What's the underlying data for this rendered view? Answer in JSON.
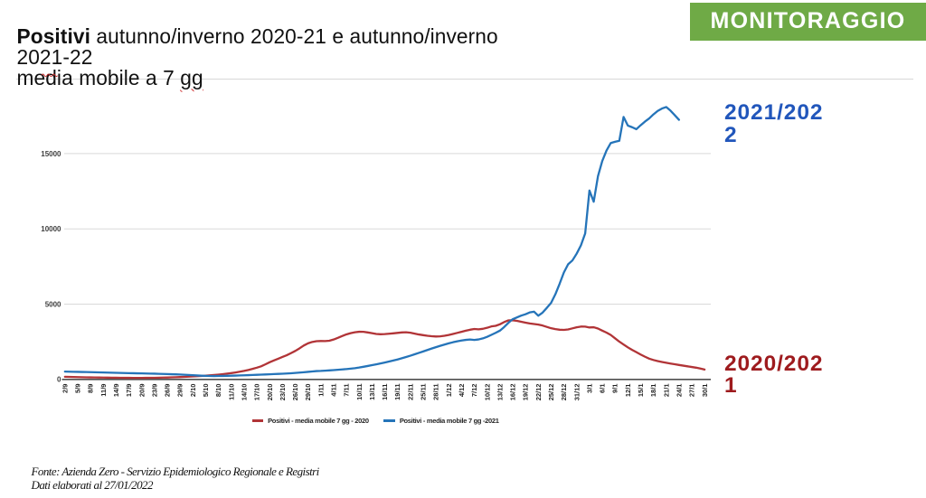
{
  "banner": {
    "label": "MONITORAGGIO",
    "bg_color": "#6faa46",
    "text_color": "#ffffff"
  },
  "title": {
    "emphasis": "Positivi",
    "rest": " autunno/inverno 2020-21 e autunno/inverno 2021-22",
    "subtitle_prefix": "media mobile a 7 ",
    "subtitle_flagged_word": "gg"
  },
  "series_labels": {
    "current_season": {
      "text": "2021/2022",
      "color": "#2156bb"
    },
    "previous_season": {
      "text": "2020/2021",
      "color": "#9e1b1e"
    }
  },
  "footer": {
    "source": "Fonte: Azienda Zero - Servizio Epidemiologico Regionale e Registri",
    "updated": "Dati elaborati al 27/01/2022"
  },
  "chart_data": {
    "type": "line",
    "title": "Positivi autunno/inverno 2020-21 e autunno/inverno 2021-22 - media mobile a 7 gg",
    "x_start": "2/9",
    "x_end": "30/1",
    "x_interval_days": 1,
    "x_tick_every_days": 3,
    "x_tick_labels": [
      "2/9",
      "5/9",
      "8/9",
      "11/9",
      "14/9",
      "17/9",
      "20/9",
      "23/9",
      "26/9",
      "29/9",
      "2/10",
      "5/10",
      "8/10",
      "11/10",
      "14/10",
      "17/10",
      "20/10",
      "23/10",
      "26/10",
      "29/10",
      "1/11",
      "4/11",
      "7/11",
      "10/11",
      "13/11",
      "16/11",
      "19/11",
      "22/11",
      "25/11",
      "28/11",
      "1/12",
      "4/12",
      "7/12",
      "10/12",
      "13/12",
      "16/12",
      "19/12",
      "22/12",
      "25/12",
      "28/12",
      "31/12",
      "3/1",
      "6/1",
      "9/1",
      "12/1",
      "15/1",
      "18/1",
      "21/1",
      "24/1",
      "27/1",
      "30/1"
    ],
    "ylim": [
      0,
      20000
    ],
    "y_ticks": [
      0,
      5000,
      10000,
      15000
    ],
    "grid": "horizontal",
    "legend_position": "bottom",
    "series": [
      {
        "name": "Positivi - media mobile 7 gg - 2020",
        "season": "2020/2021",
        "color": "#b13437",
        "start_day_index": 0,
        "values": [
          175,
          168,
          160,
          152,
          146,
          140,
          135,
          130,
          126,
          122,
          118,
          114,
          111,
          108,
          105,
          103,
          101,
          100,
          101,
          103,
          106,
          110,
          115,
          121,
          128,
          136,
          146,
          156,
          168,
          185,
          198,
          213,
          230,
          249,
          270,
          294,
          320,
          350,
          383,
          420,
          462,
          510,
          565,
          628,
          700,
          780,
          870,
          1000,
          1140,
          1260,
          1375,
          1490,
          1605,
          1745,
          1890,
          2060,
          2250,
          2395,
          2490,
          2540,
          2550,
          2545,
          2570,
          2650,
          2760,
          2880,
          2990,
          3070,
          3130,
          3165,
          3160,
          3120,
          3070,
          3020,
          3000,
          3010,
          3035,
          3060,
          3090,
          3120,
          3130,
          3100,
          3040,
          2985,
          2940,
          2900,
          2870,
          2850,
          2860,
          2900,
          2955,
          3020,
          3090,
          3160,
          3235,
          3300,
          3350,
          3325,
          3360,
          3430,
          3520,
          3560,
          3660,
          3810,
          3920,
          3930,
          3890,
          3830,
          3770,
          3715,
          3680,
          3640,
          3580,
          3490,
          3400,
          3340,
          3300,
          3290,
          3320,
          3390,
          3460,
          3510,
          3505,
          3450,
          3465,
          3380,
          3240,
          3110,
          2950,
          2730,
          2510,
          2320,
          2130,
          1960,
          1810,
          1655,
          1510,
          1380,
          1290,
          1220,
          1160,
          1105,
          1055,
          1010,
          960,
          915,
          870,
          825,
          780,
          720,
          655
        ]
      },
      {
        "name": "Positivi - media mobile 7 gg -2021",
        "season": "2021/2022",
        "color": "#2574b9",
        "start_day_index": 0,
        "values": [
          520,
          514,
          508,
          502,
          496,
          489,
          482,
          475,
          468,
          460,
          452,
          444,
          437,
          430,
          424,
          418,
          412,
          406,
          400,
          394,
          388,
          381,
          373,
          365,
          356,
          346,
          336,
          325,
          310,
          295,
          280,
          262,
          246,
          235,
          228,
          225,
          227,
          232,
          239,
          247,
          256,
          265,
          275,
          285,
          296,
          307,
          318,
          330,
          342,
          354,
          367,
          378,
          392,
          410,
          430,
          452,
          476,
          502,
          528,
          554,
          565,
          582,
          600,
          620,
          640,
          662,
          688,
          716,
          748,
          790,
          840,
          892,
          946,
          1002,
          1060,
          1122,
          1186,
          1254,
          1326,
          1404,
          1488,
          1576,
          1668,
          1762,
          1858,
          1955,
          2050,
          2142,
          2230,
          2315,
          2395,
          2468,
          2532,
          2585,
          2625,
          2650,
          2622,
          2655,
          2725,
          2830,
          2960,
          3095,
          3240,
          3480,
          3760,
          4000,
          4120,
          4240,
          4330,
          4450,
          4500,
          4230,
          4435,
          4750,
          5080,
          5650,
          6350,
          7100,
          7650,
          7900,
          8350,
          8900,
          9700,
          12550,
          11800,
          13500,
          14500,
          15200,
          15700,
          15780,
          15850,
          17430,
          16860,
          16750,
          16620,
          16880,
          17120,
          17330,
          17600,
          17830,
          17990,
          18090,
          17850,
          17550,
          17240
        ]
      }
    ]
  }
}
